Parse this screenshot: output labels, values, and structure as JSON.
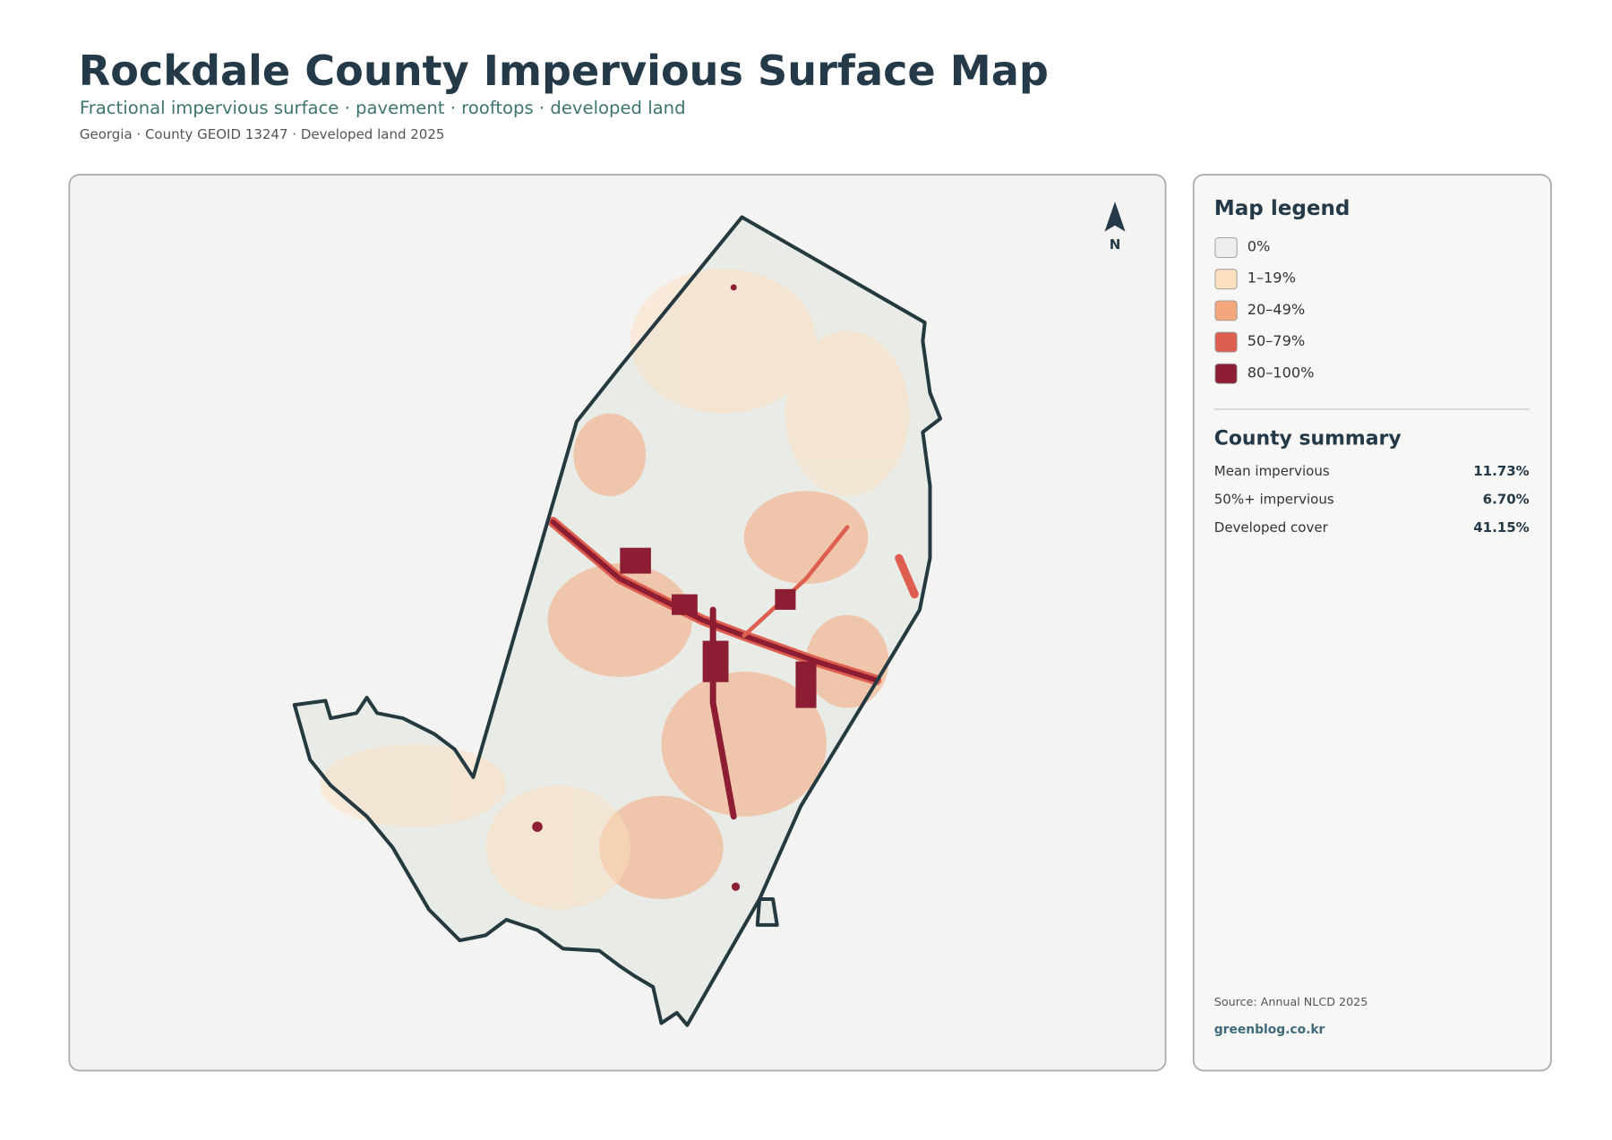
{
  "header": {
    "title": "Rockdale County Impervious Surface Map",
    "subtitle": "Fractional impervious surface · pavement · rooftops · developed land",
    "meta": "Georgia · County GEOID 13247 · Developed land 2025"
  },
  "map": {
    "north_label": "N"
  },
  "legend": {
    "title": "Map legend",
    "items": [
      {
        "label": "0%",
        "color": "#eeeeec"
      },
      {
        "label": "1–19%",
        "color": "#fde0c0"
      },
      {
        "label": "20–49%",
        "color": "#f4a77c"
      },
      {
        "label": "50–79%",
        "color": "#de5f4f"
      },
      {
        "label": "80–100%",
        "color": "#8c1d32"
      }
    ]
  },
  "summary": {
    "title": "County summary",
    "stats": [
      {
        "label": "Mean impervious",
        "value": "11.73%"
      },
      {
        "label": "50%+ impervious",
        "value": "6.70%"
      },
      {
        "label": "Developed cover",
        "value": "41.15%"
      }
    ]
  },
  "footer": {
    "source": "Source: Annual NLCD 2025",
    "site": "greenblog.co.kr"
  }
}
